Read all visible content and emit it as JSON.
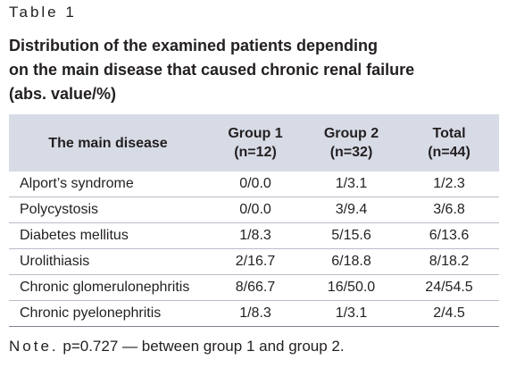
{
  "label": "Table 1",
  "title": [
    "Distribution of the examined patients depending",
    "on the main disease that caused chronic renal failure",
    "(abs. value/%)"
  ],
  "table": {
    "header": [
      [
        "The main disease"
      ],
      [
        "Group 1",
        "(n=12)"
      ],
      [
        "Group 2",
        "(n=32)"
      ],
      [
        "Total",
        "(n=44)"
      ]
    ],
    "rows": [
      [
        "Alport’s syndrome",
        "0/0.0",
        "1/3.1",
        "1/2.3"
      ],
      [
        "Polycystosis",
        "0/0.0",
        "3/9.4",
        "3/6.8"
      ],
      [
        "Diabetes mellitus",
        "1/8.3",
        "5/15.6",
        "6/13.6"
      ],
      [
        "Urolithiasis",
        "2/16.7",
        "6/18.8",
        "8/18.2"
      ],
      [
        "Chronic glomerulonephritis",
        "8/66.7",
        "16/50.0",
        "24/54.5"
      ],
      [
        "Chronic pyelonephritis",
        "1/8.3",
        "1/3.1",
        "2/4.5"
      ]
    ]
  },
  "note": {
    "label": "Note.",
    "text": "p=0.727 — between group 1 and group 2."
  }
}
